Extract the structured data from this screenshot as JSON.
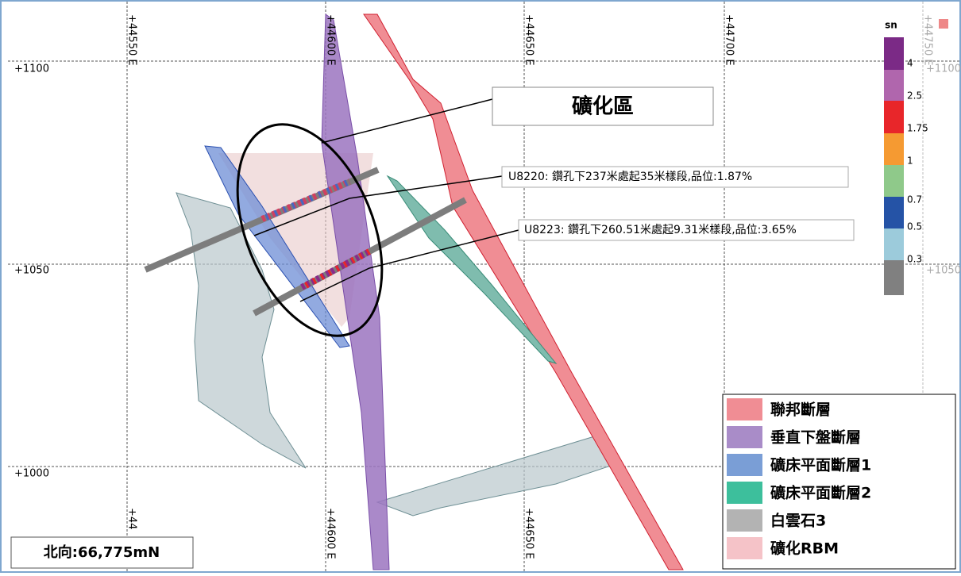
{
  "grid": {
    "top_labels": [
      "+44550 E",
      "+44600 E",
      "+44650 E",
      "+44700 E",
      "+44750 E"
    ],
    "bottom_labels": [
      "+44",
      "+44600 E",
      "+44650 E"
    ],
    "left_labels": [
      "+1100",
      "+1050",
      "+1000"
    ],
    "right_labels": [
      "+1100",
      "+1050"
    ]
  },
  "colorbar": {
    "title": "sn",
    "labels": [
      "4",
      "2.5",
      "1.75",
      "1",
      "0.7",
      "0.5",
      "0.3"
    ]
  },
  "annotations": {
    "zone": "礦化區",
    "hole1": "U8220: 鑽孔下237米處起35米樣段,品位:1.87%",
    "hole2": "U8223: 鑽孔下260.51米處起9.31米樣段,品位:3.65%"
  },
  "legend": [
    "聯邦斷層",
    "垂直下盤斷層",
    "礦床平面斷層1",
    "礦床平面斷層2",
    "白雲石3",
    "礦化RBM"
  ],
  "north": "北向:66,775mN"
}
